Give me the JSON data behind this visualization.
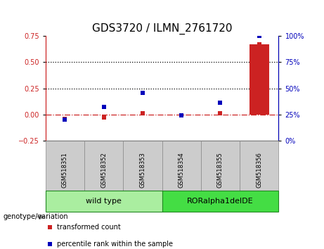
{
  "title": "GDS3720 / ILMN_2761720",
  "samples": [
    "GSM518351",
    "GSM518352",
    "GSM518353",
    "GSM518354",
    "GSM518355",
    "GSM518356"
  ],
  "transformed_count": [
    -0.04,
    -0.03,
    0.01,
    -0.01,
    0.01,
    0.67
  ],
  "percentile_rank_right": [
    20,
    32,
    46,
    24,
    36,
    100
  ],
  "left_ylim": [
    -0.25,
    0.75
  ],
  "left_yticks": [
    -0.25,
    0.0,
    0.25,
    0.5,
    0.75
  ],
  "right_ylim": [
    0,
    100
  ],
  "right_yticks": [
    0,
    25,
    50,
    75,
    100
  ],
  "hline_y": [
    0.25,
    0.5
  ],
  "zero_line_y": 0.0,
  "bar_color": "#CC2222",
  "scatter_red_color": "#CC2222",
  "scatter_blue_color": "#0000BB",
  "bar_width": 0.5,
  "groups": [
    {
      "label": "wild type",
      "indices": [
        0,
        1,
        2
      ],
      "color": "#AAEEA0"
    },
    {
      "label": "RORalpha1delDE",
      "indices": [
        3,
        4,
        5
      ],
      "color": "#44DD44"
    }
  ],
  "genotype_label": "genotype/variation",
  "legend_items": [
    {
      "label": "transformed count",
      "color": "#CC2222"
    },
    {
      "label": "percentile rank within the sample",
      "color": "#0000BB"
    }
  ],
  "title_fontsize": 11,
  "tick_fontsize": 7,
  "sample_fontsize": 6,
  "legend_fontsize": 7,
  "group_fontsize": 8,
  "geno_fontsize": 7
}
